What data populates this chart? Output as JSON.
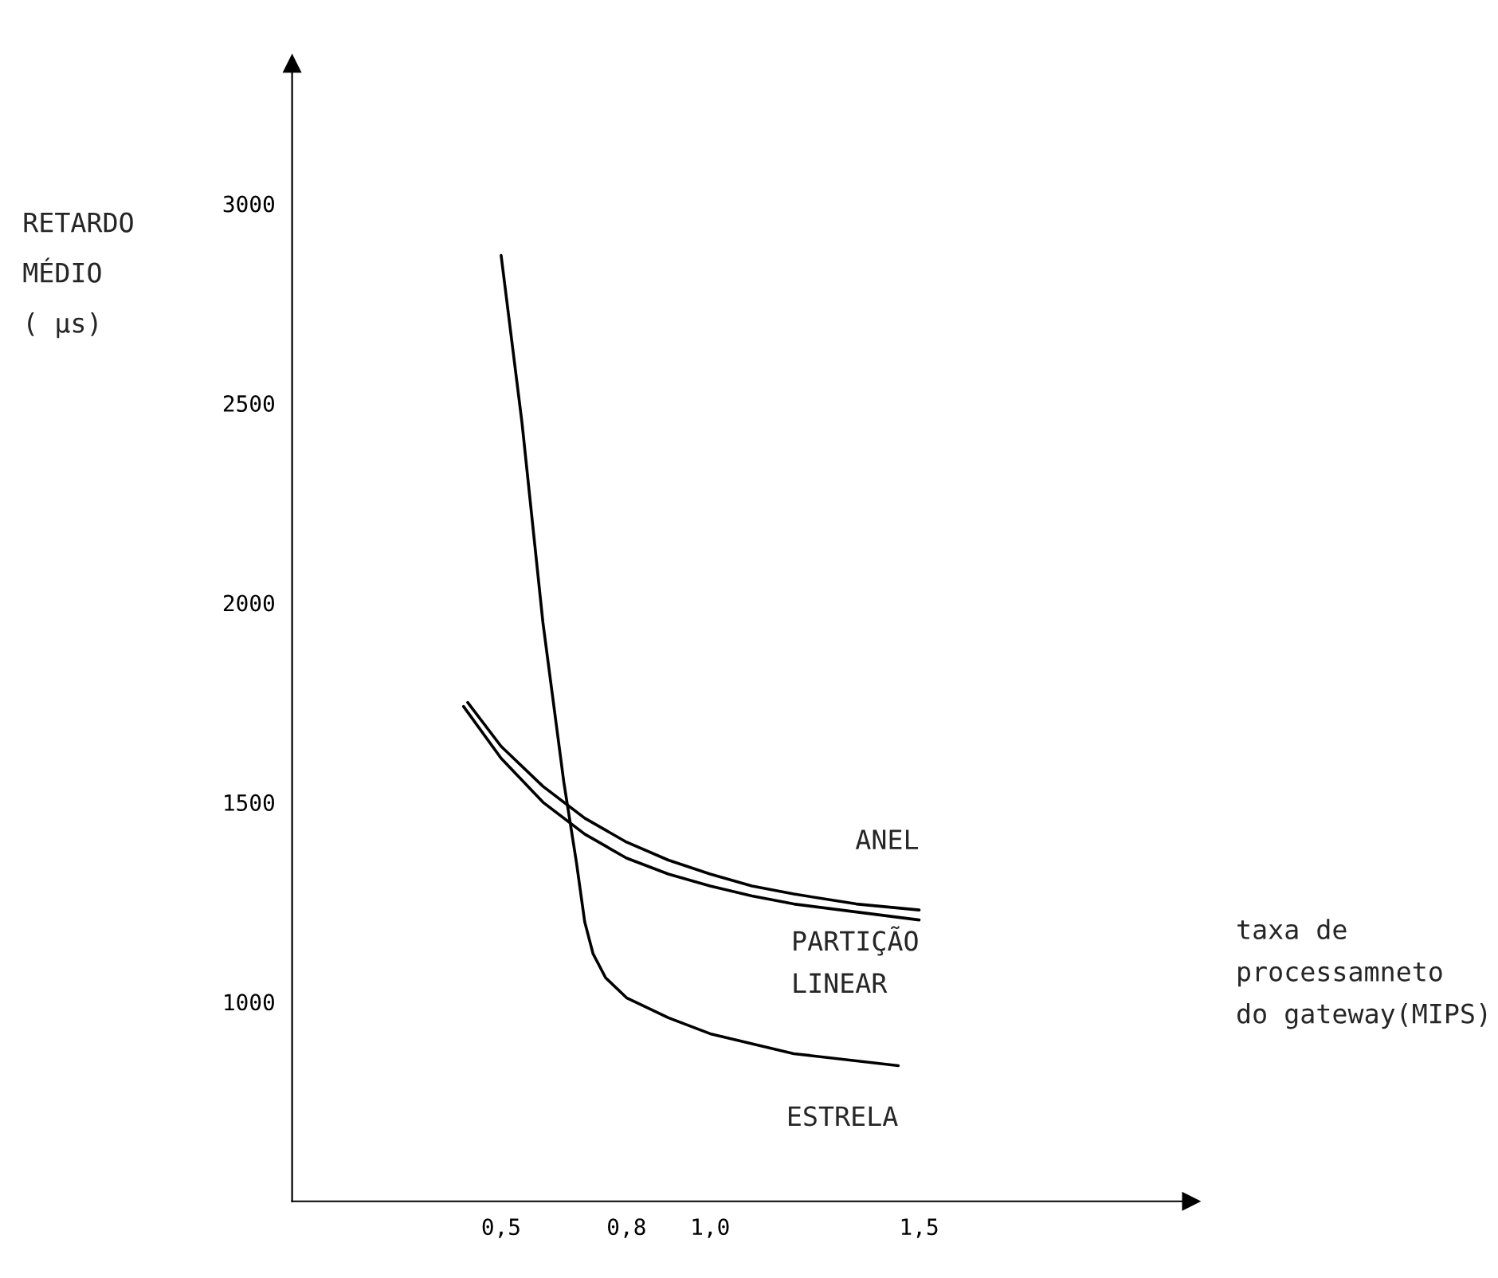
{
  "chart_data": {
    "type": "line",
    "xlabel": "taxa de\nprocessamneto\ndo gateway(MIPS)",
    "ylabel": "RETARDO\nMÉDIO\n( µs)",
    "xlim": [
      0,
      2.15
    ],
    "ylim": [
      500,
      3350
    ],
    "xticks": [
      {
        "value": 0.5,
        "label": "0,5"
      },
      {
        "value": 0.8,
        "label": "0,8"
      },
      {
        "value": 1.0,
        "label": "1,0"
      },
      {
        "value": 1.5,
        "label": "1,5"
      }
    ],
    "yticks": [
      1000,
      1500,
      2000,
      2500,
      3000
    ],
    "grid": false,
    "legend": false,
    "marker": "none",
    "line_style": "solid",
    "series": [
      {
        "name": "ANEL",
        "color": "#000000",
        "x": [
          0.42,
          0.5,
          0.6,
          0.7,
          0.8,
          0.9,
          1.0,
          1.1,
          1.2,
          1.35,
          1.5
        ],
        "values": [
          1750,
          1640,
          1540,
          1460,
          1400,
          1355,
          1320,
          1290,
          1270,
          1245,
          1230
        ]
      },
      {
        "name": "PARTIÇÃO\nLINEAR",
        "color": "#000000",
        "x": [
          0.41,
          0.5,
          0.6,
          0.7,
          0.8,
          0.9,
          1.0,
          1.1,
          1.2,
          1.35,
          1.5
        ],
        "values": [
          1740,
          1610,
          1500,
          1420,
          1360,
          1320,
          1290,
          1265,
          1245,
          1225,
          1205
        ]
      },
      {
        "name": "ESTRELA",
        "color": "#000000",
        "x": [
          0.5,
          0.55,
          0.6,
          0.65,
          0.68,
          0.7,
          0.72,
          0.75,
          0.8,
          0.9,
          1.0,
          1.2,
          1.45
        ],
        "values": [
          2870,
          2450,
          1950,
          1550,
          1350,
          1200,
          1120,
          1060,
          1010,
          960,
          920,
          870,
          840
        ]
      }
    ]
  }
}
